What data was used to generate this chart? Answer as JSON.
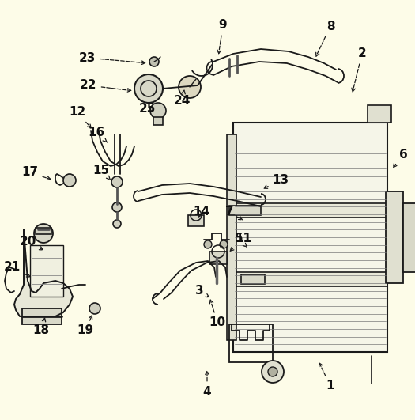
{
  "bg_color": "#FDFCE8",
  "line_color": "#1a1a1a",
  "label_color": "#111111",
  "figsize": [
    5.25,
    5.31
  ],
  "dpi": 100,
  "label_items": [
    [
      "1",
      410,
      490,
      390,
      455,
      "right"
    ],
    [
      "2",
      455,
      72,
      440,
      120,
      "right"
    ],
    [
      "3",
      255,
      370,
      280,
      375,
      "right"
    ],
    [
      "4",
      270,
      490,
      265,
      462,
      "right"
    ],
    [
      "5",
      310,
      305,
      328,
      315,
      "right"
    ],
    [
      "6",
      508,
      195,
      490,
      210,
      "right"
    ],
    [
      "7",
      295,
      270,
      318,
      278,
      "right"
    ],
    [
      "8",
      415,
      35,
      395,
      75,
      "right"
    ],
    [
      "9",
      285,
      32,
      282,
      72,
      "right"
    ],
    [
      "10",
      280,
      405,
      270,
      375,
      "right"
    ],
    [
      "11",
      310,
      305,
      310,
      320,
      "right"
    ],
    [
      "12",
      100,
      145,
      120,
      168,
      "right"
    ],
    [
      "13",
      355,
      230,
      330,
      238,
      "right"
    ],
    [
      "14",
      258,
      270,
      255,
      278,
      "right"
    ],
    [
      "15",
      130,
      218,
      135,
      233,
      "right"
    ],
    [
      "16",
      125,
      170,
      132,
      183,
      "right"
    ],
    [
      "17",
      40,
      220,
      72,
      228,
      "right"
    ],
    [
      "18",
      55,
      418,
      62,
      400,
      "right"
    ],
    [
      "19",
      110,
      418,
      115,
      397,
      "right"
    ],
    [
      "20",
      38,
      308,
      65,
      320,
      "right"
    ],
    [
      "21",
      18,
      340,
      45,
      355,
      "right"
    ],
    [
      "22",
      115,
      110,
      152,
      118,
      "right"
    ],
    [
      "23",
      112,
      75,
      155,
      85,
      "right"
    ],
    [
      "24",
      232,
      130,
      228,
      108,
      "right"
    ],
    [
      "25",
      188,
      140,
      197,
      123,
      "right"
    ]
  ]
}
